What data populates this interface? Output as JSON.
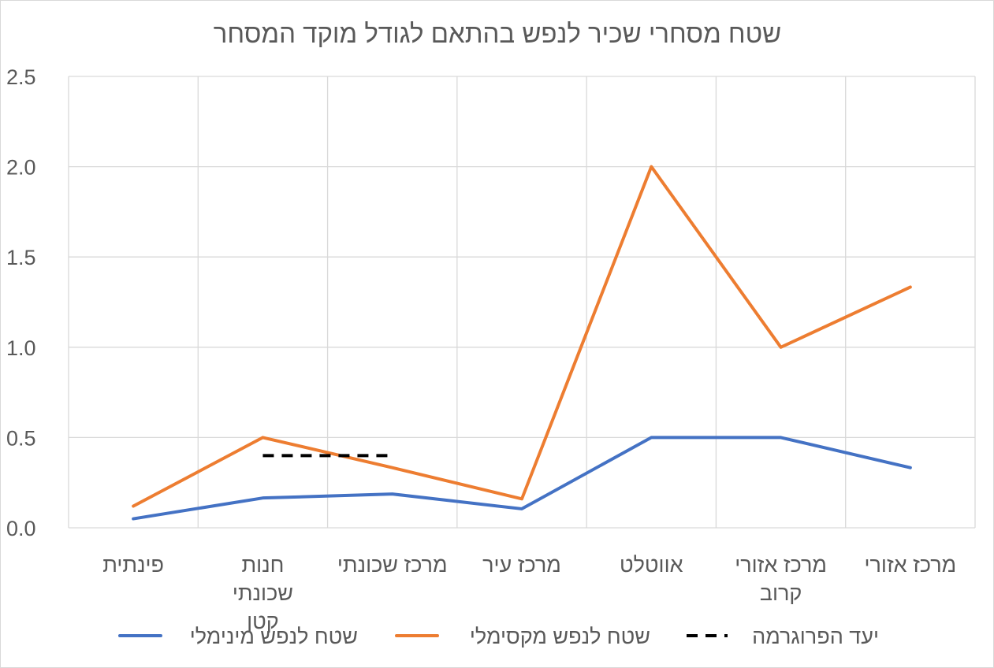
{
  "chart_data": {
    "type": "line",
    "title": "שטח מסחרי שכיר לנפש בהתאם לגודל מוקד המסחר",
    "xlabel": "",
    "ylabel": "",
    "ylim": [
      0,
      2.5
    ],
    "yticks": [
      "0.0",
      "0.5",
      "1.0",
      "1.5",
      "2.0",
      "2.5"
    ],
    "grid": true,
    "legend_position": "bottom",
    "categories": [
      [
        "פינתית"
      ],
      [
        "חנות",
        "שכונתי",
        "קטן"
      ],
      [
        "מרכז שכונתי"
      ],
      [
        "מרכז עיר"
      ],
      [
        "אווטלט"
      ],
      [
        "מרכז אזורי",
        "קרוב"
      ],
      [
        "מרכז אזורי"
      ]
    ],
    "series": [
      {
        "name": "שטח לנפש מינימלי",
        "color": "#4472C4",
        "style": "solid",
        "points": [
          [
            0.5,
            0.05
          ],
          [
            1.5,
            0.165
          ],
          [
            2.5,
            0.187
          ],
          [
            3.5,
            0.105
          ],
          [
            4.5,
            0.5
          ],
          [
            5.5,
            0.5
          ],
          [
            6.5,
            0.333
          ]
        ]
      },
      {
        "name": "שטח לנפש מקסימלי",
        "color": "#ED7D31",
        "style": "solid",
        "points": [
          [
            0.5,
            0.12
          ],
          [
            1.5,
            0.5
          ],
          [
            2.5,
            0.333
          ],
          [
            3.5,
            0.16
          ],
          [
            4.5,
            2.0
          ],
          [
            5.5,
            1.0
          ],
          [
            6.5,
            1.333
          ]
        ]
      },
      {
        "name": "יעד הפרוגרמה",
        "color": "#000000",
        "style": "dashed",
        "points": [
          [
            1.5,
            0.4
          ],
          [
            2.5,
            0.4
          ]
        ]
      }
    ]
  }
}
